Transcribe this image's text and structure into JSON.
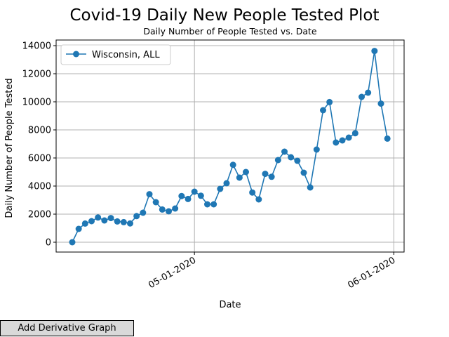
{
  "chart_data": {
    "type": "line",
    "title": "Covid-19 Daily New People Tested Plot",
    "subtitle": "Daily Number of People Tested vs. Date",
    "xlabel": "Date",
    "ylabel": "Daily Number of People Tested",
    "x_tick_labels": [
      "05-01-2020",
      "06-01-2020"
    ],
    "y_ticks": [
      0,
      2000,
      4000,
      6000,
      8000,
      10000,
      12000,
      14000
    ],
    "y_tick_labels": [
      "0",
      "2000",
      "4000",
      "6000",
      "8000",
      "10000",
      "12000",
      "14000"
    ],
    "ylim": [
      -700,
      14400
    ],
    "grid": true,
    "legend_position": "upper-left",
    "series": [
      {
        "name": "Wisconsin, ALL",
        "color": "#1f77b4",
        "x": [
          "04-12-2020",
          "04-13-2020",
          "04-14-2020",
          "04-15-2020",
          "04-16-2020",
          "04-17-2020",
          "04-18-2020",
          "04-19-2020",
          "04-20-2020",
          "04-21-2020",
          "04-22-2020",
          "04-23-2020",
          "04-24-2020",
          "04-25-2020",
          "04-26-2020",
          "04-27-2020",
          "04-28-2020",
          "04-29-2020",
          "04-30-2020",
          "05-01-2020",
          "05-02-2020",
          "05-03-2020",
          "05-04-2020",
          "05-05-2020",
          "05-06-2020",
          "05-07-2020",
          "05-08-2020",
          "05-09-2020",
          "05-10-2020",
          "05-11-2020",
          "05-12-2020",
          "05-13-2020",
          "05-14-2020",
          "05-15-2020",
          "05-16-2020",
          "05-17-2020",
          "05-18-2020",
          "05-19-2020",
          "05-20-2020",
          "05-21-2020",
          "05-22-2020",
          "05-23-2020",
          "05-24-2020",
          "05-25-2020",
          "05-26-2020",
          "05-27-2020",
          "05-28-2020",
          "05-29-2020",
          "05-30-2020",
          "05-31-2020"
        ],
        "values": [
          0,
          950,
          1330,
          1500,
          1760,
          1550,
          1720,
          1480,
          1430,
          1340,
          1860,
          2100,
          3420,
          2850,
          2330,
          2200,
          2400,
          3290,
          3080,
          3600,
          3310,
          2700,
          2700,
          3800,
          4200,
          5510,
          4600,
          5000,
          3540,
          3050,
          4870,
          4660,
          5850,
          6450,
          6050,
          5800,
          4950,
          3900,
          6600,
          9400,
          9980,
          7100,
          7250,
          7450,
          7760,
          10350,
          10650,
          13620,
          9870,
          7380
        ]
      }
    ]
  },
  "button": {
    "label": "Add Derivative Graph"
  }
}
